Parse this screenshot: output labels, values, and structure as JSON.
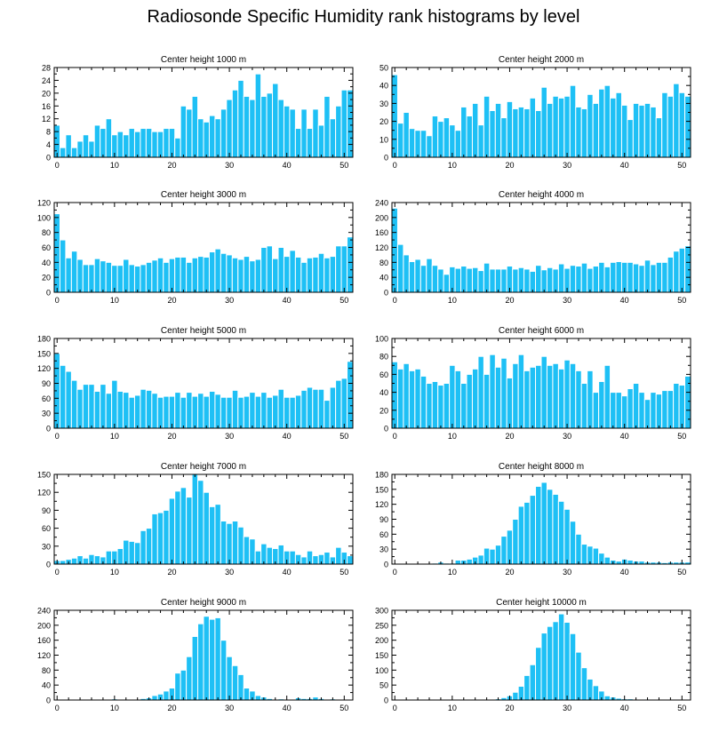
{
  "title": "Radiosonde Specific Humidity rank histograms by level",
  "colors": {
    "bar": "#1ec0f5",
    "bar_stroke": "#ffffff",
    "axis": "#000000",
    "text": "#000000"
  },
  "chart_data": [
    {
      "type": "bar",
      "title": "Center height 1000 m",
      "x": [
        0,
        1,
        2,
        3,
        4,
        5,
        6,
        7,
        8,
        9,
        10,
        11,
        12,
        13,
        14,
        15,
        16,
        17,
        18,
        19,
        20,
        21,
        22,
        23,
        24,
        25,
        26,
        27,
        28,
        29,
        30,
        31,
        32,
        33,
        34,
        35,
        36,
        37,
        38,
        39,
        40,
        41,
        42,
        43,
        44,
        45,
        46,
        47,
        48,
        49,
        50,
        51
      ],
      "values": [
        10,
        3,
        7,
        3,
        5,
        7,
        5,
        10,
        9,
        12,
        7,
        8,
        7,
        9,
        8,
        9,
        9,
        8,
        8,
        9,
        9,
        6,
        16,
        15,
        19,
        12,
        11,
        13,
        12,
        15,
        18,
        21,
        24,
        19,
        18,
        26,
        19,
        20,
        23,
        18,
        16,
        15,
        9,
        15,
        9,
        15,
        10,
        19,
        12,
        16,
        21,
        21
      ],
      "xlim": [
        -0.5,
        51.5
      ],
      "ylim": [
        0,
        28
      ],
      "yticks": [
        0,
        4,
        8,
        12,
        16,
        20,
        24,
        28
      ],
      "xticks": [
        0,
        10,
        20,
        30,
        40,
        50
      ]
    },
    {
      "type": "bar",
      "title": "Center height 2000 m",
      "x": [
        0,
        1,
        2,
        3,
        4,
        5,
        6,
        7,
        8,
        9,
        10,
        11,
        12,
        13,
        14,
        15,
        16,
        17,
        18,
        19,
        20,
        21,
        22,
        23,
        24,
        25,
        26,
        27,
        28,
        29,
        30,
        31,
        32,
        33,
        34,
        35,
        36,
        37,
        38,
        39,
        40,
        41,
        42,
        43,
        44,
        45,
        46,
        47,
        48,
        49,
        50,
        51
      ],
      "values": [
        46,
        19,
        25,
        16,
        15,
        15,
        12,
        23,
        20,
        22,
        18,
        15,
        28,
        23,
        30,
        18,
        34,
        26,
        30,
        22,
        31,
        27,
        28,
        27,
        33,
        26,
        39,
        30,
        34,
        33,
        34,
        40,
        28,
        27,
        35,
        30,
        38,
        40,
        33,
        36,
        29,
        21,
        30,
        29,
        30,
        28,
        22,
        36,
        34,
        41,
        36,
        34
      ],
      "xlim": [
        -0.5,
        51.5
      ],
      "ylim": [
        0,
        50
      ],
      "yticks": [
        0,
        10,
        20,
        30,
        40,
        50
      ],
      "xticks": [
        0,
        10,
        20,
        30,
        40,
        50
      ]
    },
    {
      "type": "bar",
      "title": "Center height 3000 m",
      "x": [
        0,
        1,
        2,
        3,
        4,
        5,
        6,
        7,
        8,
        9,
        10,
        11,
        12,
        13,
        14,
        15,
        16,
        17,
        18,
        19,
        20,
        21,
        22,
        23,
        24,
        25,
        26,
        27,
        28,
        29,
        30,
        31,
        32,
        33,
        34,
        35,
        36,
        37,
        38,
        39,
        40,
        41,
        42,
        43,
        44,
        45,
        46,
        47,
        48,
        49,
        50,
        51
      ],
      "values": [
        105,
        70,
        46,
        55,
        44,
        37,
        37,
        45,
        42,
        40,
        36,
        36,
        44,
        37,
        35,
        37,
        40,
        43,
        46,
        40,
        45,
        47,
        47,
        40,
        46,
        48,
        47,
        54,
        58,
        52,
        50,
        46,
        44,
        48,
        42,
        44,
        60,
        62,
        45,
        60,
        48,
        56,
        47,
        40,
        46,
        47,
        52,
        46,
        48,
        62,
        62,
        74
      ],
      "xlim": [
        -0.5,
        51.5
      ],
      "ylim": [
        0,
        120
      ],
      "yticks": [
        0,
        20,
        40,
        60,
        80,
        100,
        120
      ],
      "xticks": [
        0,
        10,
        20,
        30,
        40,
        50
      ]
    },
    {
      "type": "bar",
      "title": "Center height 4000 m",
      "x": [
        0,
        1,
        2,
        3,
        4,
        5,
        6,
        7,
        8,
        9,
        10,
        11,
        12,
        13,
        14,
        15,
        16,
        17,
        18,
        19,
        20,
        21,
        22,
        23,
        24,
        25,
        26,
        27,
        28,
        29,
        30,
        31,
        32,
        33,
        34,
        35,
        36,
        37,
        38,
        39,
        40,
        41,
        42,
        43,
        44,
        45,
        46,
        47,
        48,
        49,
        50,
        51
      ],
      "values": [
        225,
        128,
        100,
        82,
        88,
        72,
        90,
        72,
        62,
        48,
        68,
        64,
        70,
        64,
        66,
        58,
        78,
        62,
        62,
        62,
        70,
        62,
        66,
        62,
        56,
        72,
        60,
        66,
        62,
        76,
        64,
        72,
        70,
        78,
        64,
        70,
        80,
        68,
        80,
        82,
        80,
        80,
        76,
        72,
        86,
        74,
        80,
        80,
        94,
        110,
        118,
        124
      ],
      "xlim": [
        -0.5,
        51.5
      ],
      "ylim": [
        0,
        240
      ],
      "yticks": [
        0,
        40,
        80,
        120,
        160,
        200,
        240
      ],
      "xticks": [
        0,
        10,
        20,
        30,
        40,
        50
      ]
    },
    {
      "type": "bar",
      "title": "Center height 5000 m",
      "x": [
        0,
        1,
        2,
        3,
        4,
        5,
        6,
        7,
        8,
        9,
        10,
        11,
        12,
        13,
        14,
        15,
        16,
        17,
        18,
        19,
        20,
        21,
        22,
        23,
        24,
        25,
        26,
        27,
        28,
        29,
        30,
        31,
        32,
        33,
        34,
        35,
        36,
        37,
        38,
        39,
        40,
        41,
        42,
        43,
        44,
        45,
        46,
        47,
        48,
        49,
        50,
        51
      ],
      "values": [
        150,
        126,
        114,
        96,
        78,
        88,
        88,
        74,
        88,
        70,
        96,
        74,
        72,
        62,
        66,
        78,
        76,
        70,
        62,
        64,
        64,
        72,
        62,
        72,
        64,
        70,
        64,
        74,
        68,
        62,
        62,
        76,
        62,
        64,
        72,
        64,
        72,
        62,
        66,
        78,
        62,
        62,
        66,
        76,
        82,
        78,
        78,
        56,
        82,
        96,
        100,
        134
      ],
      "xlim": [
        -0.5,
        51.5
      ],
      "ylim": [
        0,
        180
      ],
      "yticks": [
        0,
        30,
        60,
        90,
        120,
        150,
        180
      ],
      "xticks": [
        0,
        10,
        20,
        30,
        40,
        50
      ]
    },
    {
      "type": "bar",
      "title": "Center height 6000 m",
      "x": [
        0,
        1,
        2,
        3,
        4,
        5,
        6,
        7,
        8,
        9,
        10,
        11,
        12,
        13,
        14,
        15,
        16,
        17,
        18,
        19,
        20,
        21,
        22,
        23,
        24,
        25,
        26,
        27,
        28,
        29,
        30,
        31,
        32,
        33,
        34,
        35,
        36,
        37,
        38,
        39,
        40,
        41,
        42,
        43,
        44,
        45,
        46,
        47,
        48,
        49,
        50,
        51
      ],
      "values": [
        74,
        66,
        72,
        64,
        66,
        58,
        50,
        52,
        48,
        50,
        70,
        64,
        50,
        60,
        66,
        80,
        60,
        82,
        68,
        78,
        56,
        72,
        82,
        64,
        68,
        70,
        80,
        70,
        72,
        66,
        76,
        72,
        64,
        50,
        64,
        40,
        52,
        70,
        40,
        40,
        36,
        44,
        50,
        40,
        32,
        40,
        38,
        42,
        42,
        50,
        48,
        58
      ],
      "xlim": [
        -0.5,
        51.5
      ],
      "ylim": [
        0,
        100
      ],
      "yticks": [
        0,
        20,
        40,
        60,
        80,
        100
      ],
      "xticks": [
        0,
        10,
        20,
        30,
        40,
        50
      ]
    },
    {
      "type": "bar",
      "title": "Center height 7000 m",
      "x": [
        0,
        1,
        2,
        3,
        4,
        5,
        6,
        7,
        8,
        9,
        10,
        11,
        12,
        13,
        14,
        15,
        16,
        17,
        18,
        19,
        20,
        21,
        22,
        23,
        24,
        25,
        26,
        27,
        28,
        29,
        30,
        31,
        32,
        33,
        34,
        35,
        36,
        37,
        38,
        39,
        40,
        41,
        42,
        43,
        44,
        45,
        46,
        47,
        48,
        49,
        50,
        51
      ],
      "values": [
        6,
        6,
        8,
        10,
        14,
        10,
        16,
        14,
        12,
        22,
        22,
        26,
        40,
        38,
        36,
        56,
        60,
        84,
        86,
        90,
        110,
        122,
        128,
        112,
        150,
        140,
        120,
        96,
        100,
        72,
        68,
        72,
        62,
        46,
        42,
        22,
        34,
        28,
        26,
        32,
        22,
        22,
        16,
        12,
        22,
        14,
        16,
        20,
        12,
        28,
        20,
        14
      ],
      "xlim": [
        -0.5,
        51.5
      ],
      "ylim": [
        0,
        150
      ],
      "yticks": [
        0,
        30,
        60,
        90,
        120,
        150
      ],
      "xticks": [
        0,
        10,
        20,
        30,
        40,
        50
      ]
    },
    {
      "type": "bar",
      "title": "Center height 8000 m",
      "x": [
        0,
        1,
        2,
        3,
        4,
        5,
        6,
        7,
        8,
        9,
        10,
        11,
        12,
        13,
        14,
        15,
        16,
        17,
        18,
        19,
        20,
        21,
        22,
        23,
        24,
        25,
        26,
        27,
        28,
        29,
        30,
        31,
        32,
        33,
        34,
        35,
        36,
        37,
        38,
        39,
        40,
        41,
        42,
        43,
        44,
        45,
        46,
        47,
        48,
        49,
        50,
        51
      ],
      "values": [
        1,
        1,
        1,
        1,
        1,
        1,
        1,
        2,
        4,
        2,
        2,
        8,
        8,
        10,
        14,
        18,
        32,
        30,
        38,
        56,
        68,
        90,
        116,
        124,
        138,
        156,
        164,
        150,
        140,
        126,
        110,
        86,
        60,
        40,
        36,
        32,
        22,
        14,
        8,
        6,
        10,
        8,
        6,
        6,
        4,
        4,
        4,
        3,
        4,
        4,
        4,
        4
      ],
      "xlim": [
        -0.5,
        51.5
      ],
      "ylim": [
        0,
        180
      ],
      "yticks": [
        0,
        30,
        60,
        90,
        120,
        150,
        180
      ],
      "xticks": [
        0,
        10,
        20,
        30,
        40,
        50
      ]
    },
    {
      "type": "bar",
      "title": "Center height 9000 m",
      "x": [
        0,
        1,
        2,
        3,
        4,
        5,
        6,
        7,
        8,
        9,
        10,
        11,
        12,
        13,
        14,
        15,
        16,
        17,
        18,
        19,
        20,
        21,
        22,
        23,
        24,
        25,
        26,
        27,
        28,
        29,
        30,
        31,
        32,
        33,
        34,
        35,
        36,
        37,
        38,
        39,
        40,
        41,
        42,
        43,
        44,
        45,
        46,
        47,
        48,
        49,
        50,
        51
      ],
      "values": [
        1,
        1,
        1,
        1,
        1,
        1,
        1,
        1,
        1,
        1,
        3,
        1,
        1,
        2,
        1,
        4,
        6,
        12,
        16,
        24,
        32,
        72,
        80,
        116,
        170,
        204,
        224,
        216,
        220,
        160,
        116,
        92,
        68,
        32,
        24,
        12,
        8,
        4,
        2,
        3,
        2,
        2,
        6,
        4,
        4,
        8,
        4,
        2,
        3,
        2,
        1,
        1
      ],
      "xlim": [
        -0.5,
        51.5
      ],
      "ylim": [
        0,
        240
      ],
      "yticks": [
        0,
        40,
        80,
        120,
        160,
        200,
        240
      ],
      "xticks": [
        0,
        10,
        20,
        30,
        40,
        50
      ]
    },
    {
      "type": "bar",
      "title": "Center height 10000 m",
      "x": [
        0,
        1,
        2,
        3,
        4,
        5,
        6,
        7,
        8,
        9,
        10,
        11,
        12,
        13,
        14,
        15,
        16,
        17,
        18,
        19,
        20,
        21,
        22,
        23,
        24,
        25,
        26,
        27,
        28,
        29,
        30,
        31,
        32,
        33,
        34,
        35,
        36,
        37,
        38,
        39,
        40,
        41,
        42,
        43,
        44,
        45,
        46,
        47,
        48,
        49,
        50,
        51
      ],
      "values": [
        1,
        1,
        1,
        1,
        1,
        1,
        1,
        1,
        1,
        1,
        1,
        1,
        1,
        1,
        1,
        1,
        1,
        1,
        4,
        8,
        14,
        26,
        46,
        82,
        118,
        176,
        224,
        246,
        262,
        288,
        260,
        222,
        160,
        108,
        70,
        48,
        30,
        14,
        10,
        6,
        4,
        4,
        2,
        2,
        3,
        2,
        1,
        1,
        1,
        1,
        1,
        1
      ],
      "xlim": [
        -0.5,
        51.5
      ],
      "ylim": [
        0,
        300
      ],
      "yticks": [
        0,
        50,
        100,
        150,
        200,
        250,
        300
      ],
      "xticks": [
        0,
        10,
        20,
        30,
        40,
        50
      ]
    }
  ]
}
